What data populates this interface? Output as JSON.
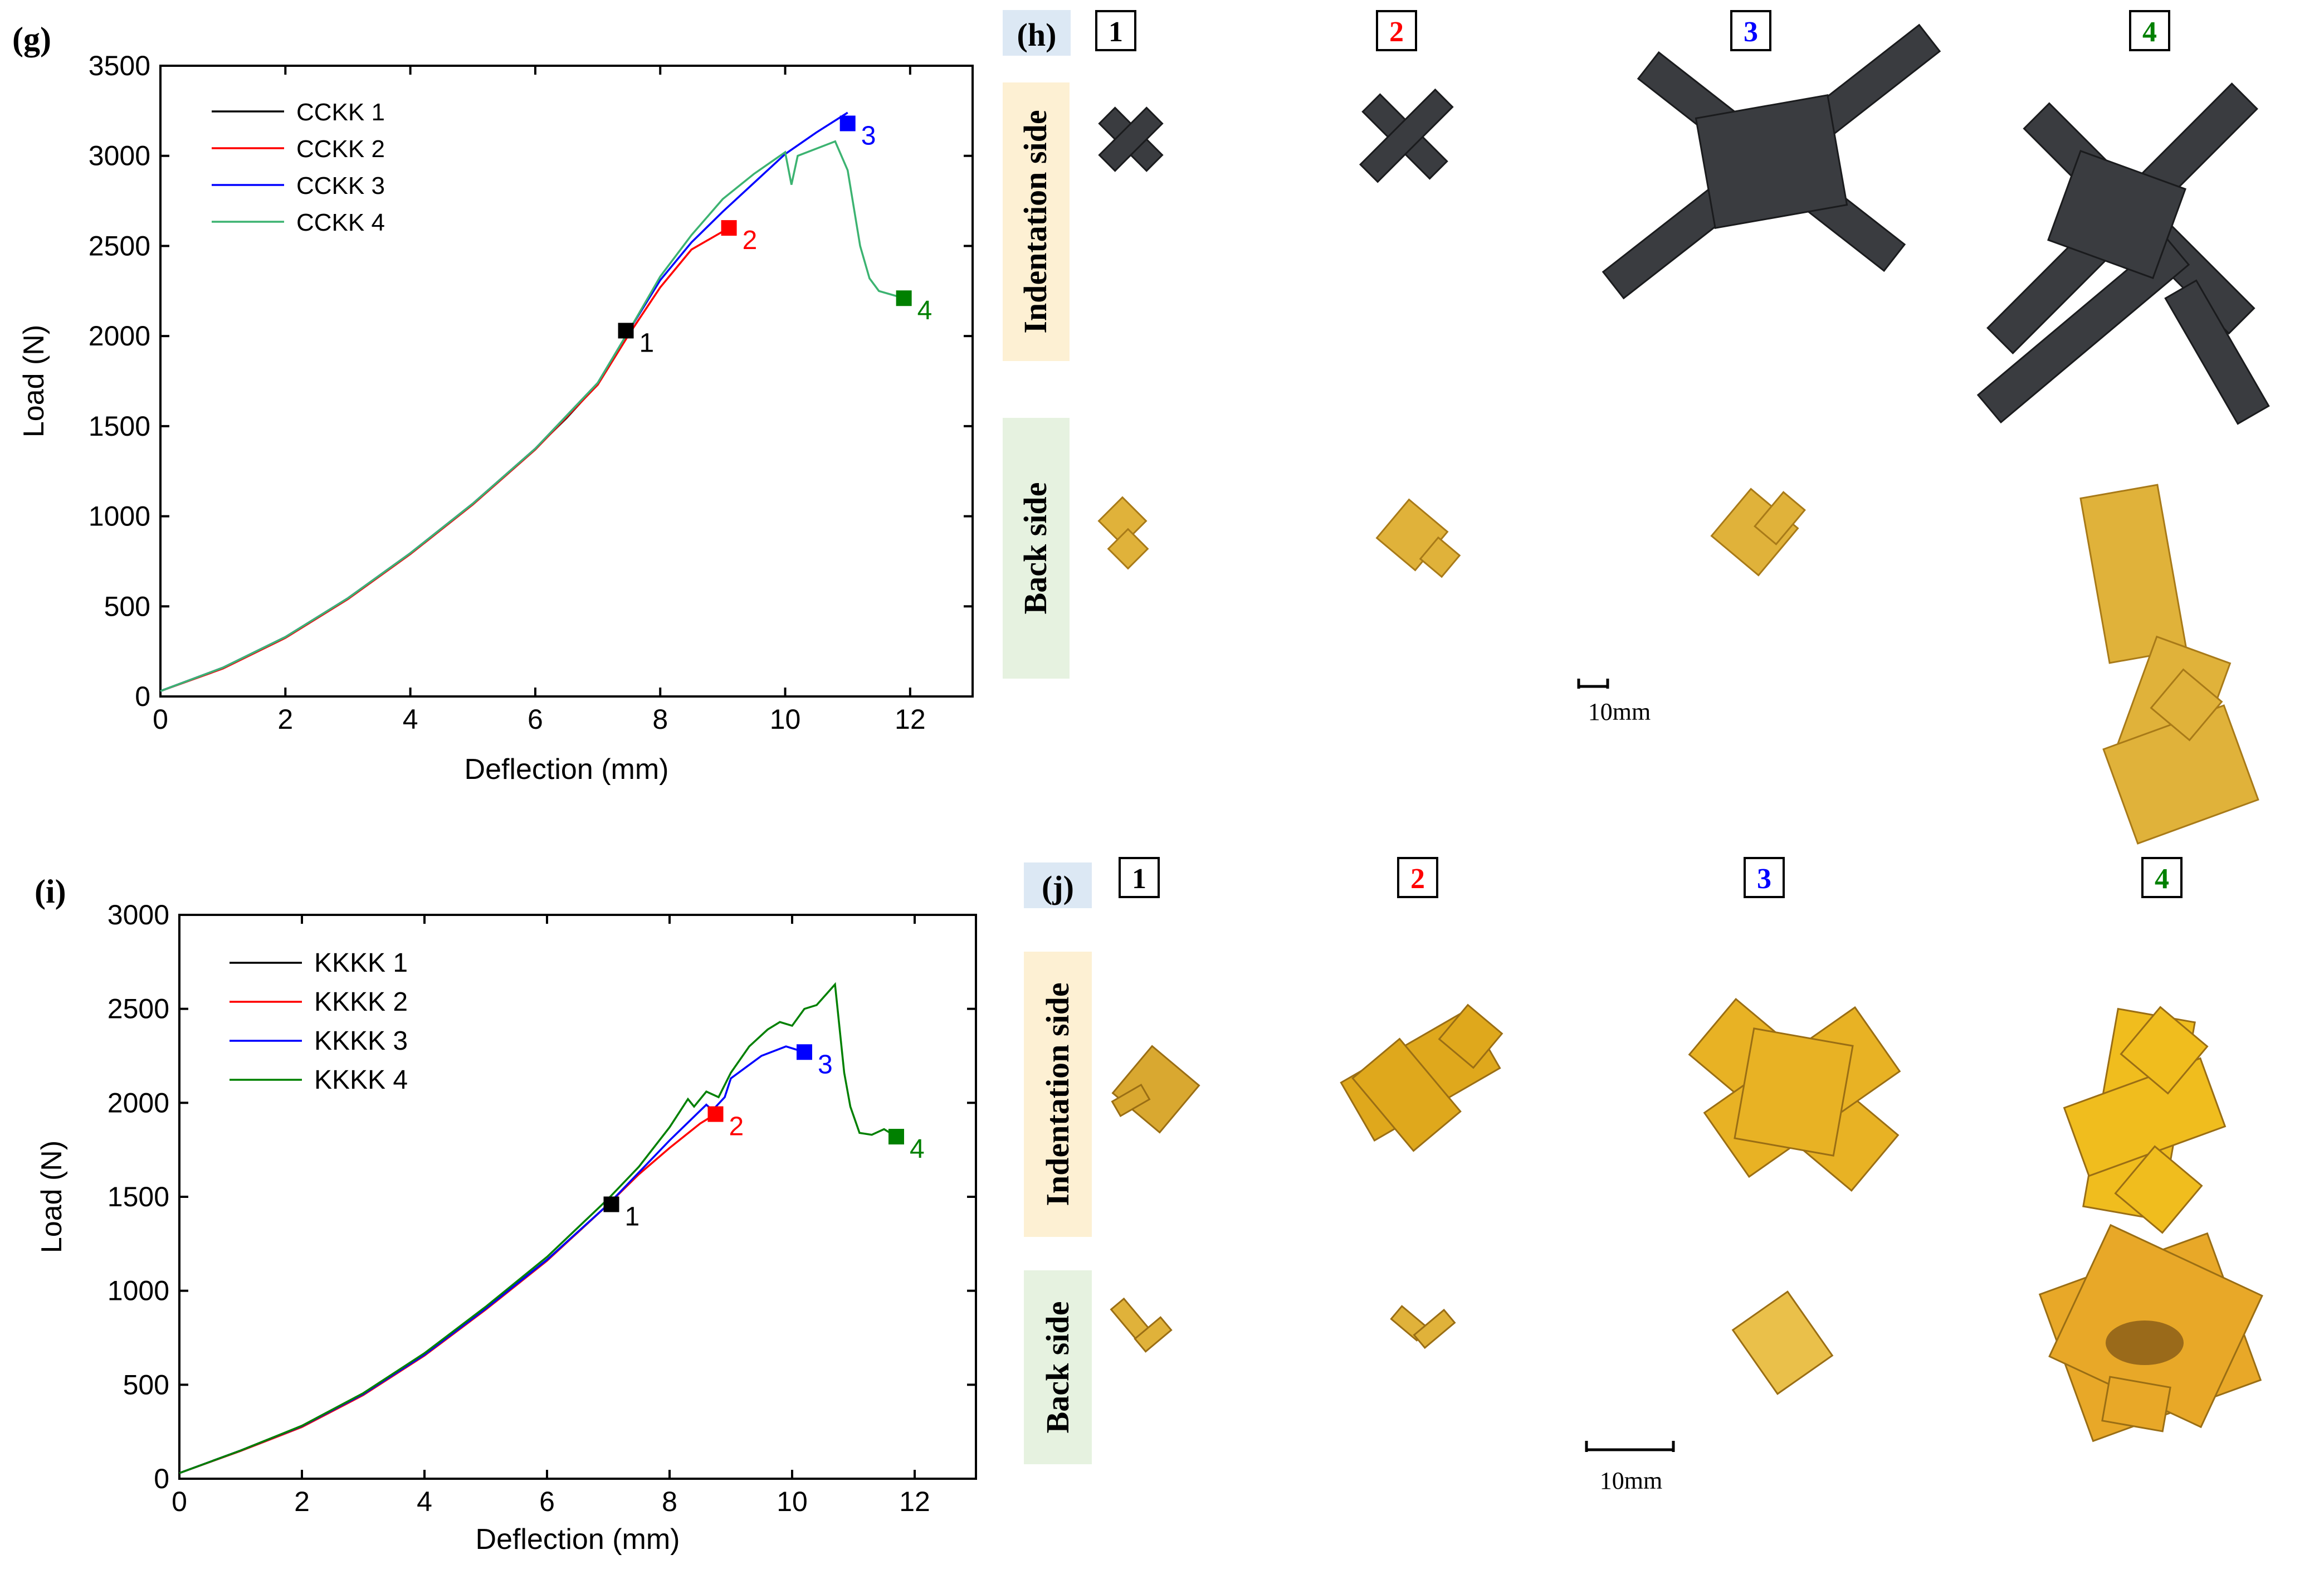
{
  "panels": {
    "g": {
      "label": "(g)",
      "chart_data": {
        "type": "line",
        "title": "",
        "xlabel": "Deflection (mm)",
        "ylabel": "Load (N)",
        "xlim": [
          0,
          13
        ],
        "ylim": [
          0,
          3500
        ],
        "xticks": [
          0,
          2,
          4,
          6,
          8,
          10,
          12
        ],
        "yticks": [
          0,
          500,
          1000,
          1500,
          2000,
          2500,
          3000,
          3500
        ],
        "legend_position": "top-left",
        "grid": false,
        "series": [
          {
            "name": "CCKK 1",
            "color": "#000000",
            "x": [
              0,
              1,
              2,
              3,
              4,
              5,
              6,
              6.5,
              7,
              7.5
            ],
            "y": [
              30,
              160,
              330,
              545,
              795,
              1070,
              1375,
              1545,
              1735,
              2030
            ]
          },
          {
            "name": "CCKK 2",
            "color": "#ff0000",
            "x": [
              0,
              1,
              2,
              3,
              4,
              5,
              6,
              7,
              7.5,
              8,
              8.5,
              9.1
            ],
            "y": [
              30,
              155,
              325,
              540,
              790,
              1065,
              1370,
              1730,
              2010,
              2270,
              2480,
              2600
            ]
          },
          {
            "name": "CCKK 3",
            "color": "#0000ff",
            "x": [
              0,
              1,
              2,
              3,
              4,
              5,
              6,
              7,
              7.5,
              8,
              8.5,
              9,
              9.5,
              10,
              10.5,
              11.0
            ],
            "y": [
              30,
              160,
              330,
              545,
              795,
              1070,
              1375,
              1740,
              2030,
              2310,
              2520,
              2690,
              2850,
              3010,
              3130,
              3240
            ]
          },
          {
            "name": "CCKK 4",
            "color": "#3cb371",
            "x": [
              0,
              1,
              2,
              3,
              4,
              5,
              6,
              7,
              7.5,
              8,
              8.5,
              9,
              9.5,
              10,
              10.1,
              10.2,
              10.5,
              10.8,
              11.0,
              11.2,
              11.35,
              11.5,
              11.9
            ],
            "y": [
              30,
              160,
              330,
              545,
              795,
              1070,
              1375,
              1740,
              2030,
              2330,
              2560,
              2760,
              2900,
              3020,
              2840,
              3000,
              3040,
              3080,
              2920,
              2500,
              2320,
              2250,
              2210
            ]
          }
        ],
        "markers": [
          {
            "label": "1",
            "x": 7.45,
            "y": 2030,
            "color": "#000000"
          },
          {
            "label": "2",
            "x": 9.1,
            "y": 2600,
            "color": "#ff0000"
          },
          {
            "label": "3",
            "x": 11.0,
            "y": 3180,
            "color": "#0000ff"
          },
          {
            "label": "4",
            "x": 11.9,
            "y": 2210,
            "color": "#008000"
          }
        ]
      }
    },
    "i": {
      "label": "(i)",
      "chart_data": {
        "type": "line",
        "title": "",
        "xlabel": "Deflection (mm)",
        "ylabel": "Load (N)",
        "xlim": [
          0,
          13
        ],
        "ylim": [
          0,
          3000
        ],
        "xticks": [
          0,
          2,
          4,
          6,
          8,
          10,
          12
        ],
        "yticks": [
          0,
          500,
          1000,
          1500,
          2000,
          2500,
          3000
        ],
        "legend_position": "top-left",
        "grid": false,
        "series": [
          {
            "name": "KKKK 1",
            "color": "#000000",
            "x": [
              0,
              1,
              2,
              3,
              4,
              5,
              6,
              6.5,
              7.0
            ],
            "y": [
              30,
              150,
              280,
              450,
              660,
              905,
              1165,
              1310,
              1460
            ]
          },
          {
            "name": "KKKK 2",
            "color": "#ff0000",
            "x": [
              0,
              1,
              2,
              3,
              4,
              5,
              6,
              7,
              7.5,
              8,
              8.5,
              8.75
            ],
            "y": [
              30,
              148,
              275,
              445,
              655,
              900,
              1160,
              1460,
              1620,
              1760,
              1890,
              1940
            ]
          },
          {
            "name": "KKKK 3",
            "color": "#0000ff",
            "x": [
              0,
              1,
              2,
              3,
              4,
              5,
              6,
              7,
              8,
              8.6,
              8.7,
              8.9,
              9.0,
              9.5,
              9.9,
              10.2
            ],
            "y": [
              30,
              150,
              280,
              450,
              660,
              905,
              1165,
              1460,
              1800,
              1990,
              1960,
              2030,
              2130,
              2250,
              2300,
              2270
            ]
          },
          {
            "name": "KKKK 4",
            "color": "#008000",
            "x": [
              0,
              1,
              2,
              3,
              4,
              5,
              6,
              7,
              7.5,
              8,
              8.3,
              8.4,
              8.6,
              8.8,
              9.0,
              9.3,
              9.6,
              9.8,
              10.0,
              10.2,
              10.4,
              10.7,
              10.85,
              10.95,
              11.1,
              11.3,
              11.5,
              11.7
            ],
            "y": [
              30,
              150,
              282,
              455,
              668,
              915,
              1180,
              1490,
              1660,
              1870,
              2020,
              1980,
              2060,
              2030,
              2160,
              2300,
              2390,
              2430,
              2410,
              2500,
              2520,
              2630,
              2160,
              1980,
              1840,
              1830,
              1860,
              1820
            ]
          }
        ],
        "markers": [
          {
            "label": "1",
            "x": 7.05,
            "y": 1460,
            "color": "#000000"
          },
          {
            "label": "2",
            "x": 8.75,
            "y": 1940,
            "color": "#ff0000"
          },
          {
            "label": "3",
            "x": 10.2,
            "y": 2270,
            "color": "#0000ff"
          },
          {
            "label": "4",
            "x": 11.7,
            "y": 1820,
            "color": "#008000"
          }
        ]
      }
    },
    "h": {
      "label": "(h)",
      "numbers": [
        {
          "text": "1",
          "color": "#000000"
        },
        {
          "text": "2",
          "color": "#ff0000"
        },
        {
          "text": "3",
          "color": "#0000ff"
        },
        {
          "text": "4",
          "color": "#008000"
        }
      ],
      "row_labels": [
        "Indentation side",
        "Back side"
      ],
      "scale_label": "10mm"
    },
    "j": {
      "label": "(j)",
      "numbers": [
        {
          "text": "1",
          "color": "#000000"
        },
        {
          "text": "2",
          "color": "#ff0000"
        },
        {
          "text": "3",
          "color": "#0000ff"
        },
        {
          "text": "4",
          "color": "#008000"
        }
      ],
      "row_labels": [
        "Indentation side",
        "Back side"
      ],
      "scale_label": "10mm"
    }
  },
  "colors": {
    "indentation_band": "#fdf0d3",
    "back_band": "#e6f2e0",
    "label_band": "#dce8f4",
    "carbon": "#3a3c40",
    "kevlar": "#e0b23a"
  }
}
